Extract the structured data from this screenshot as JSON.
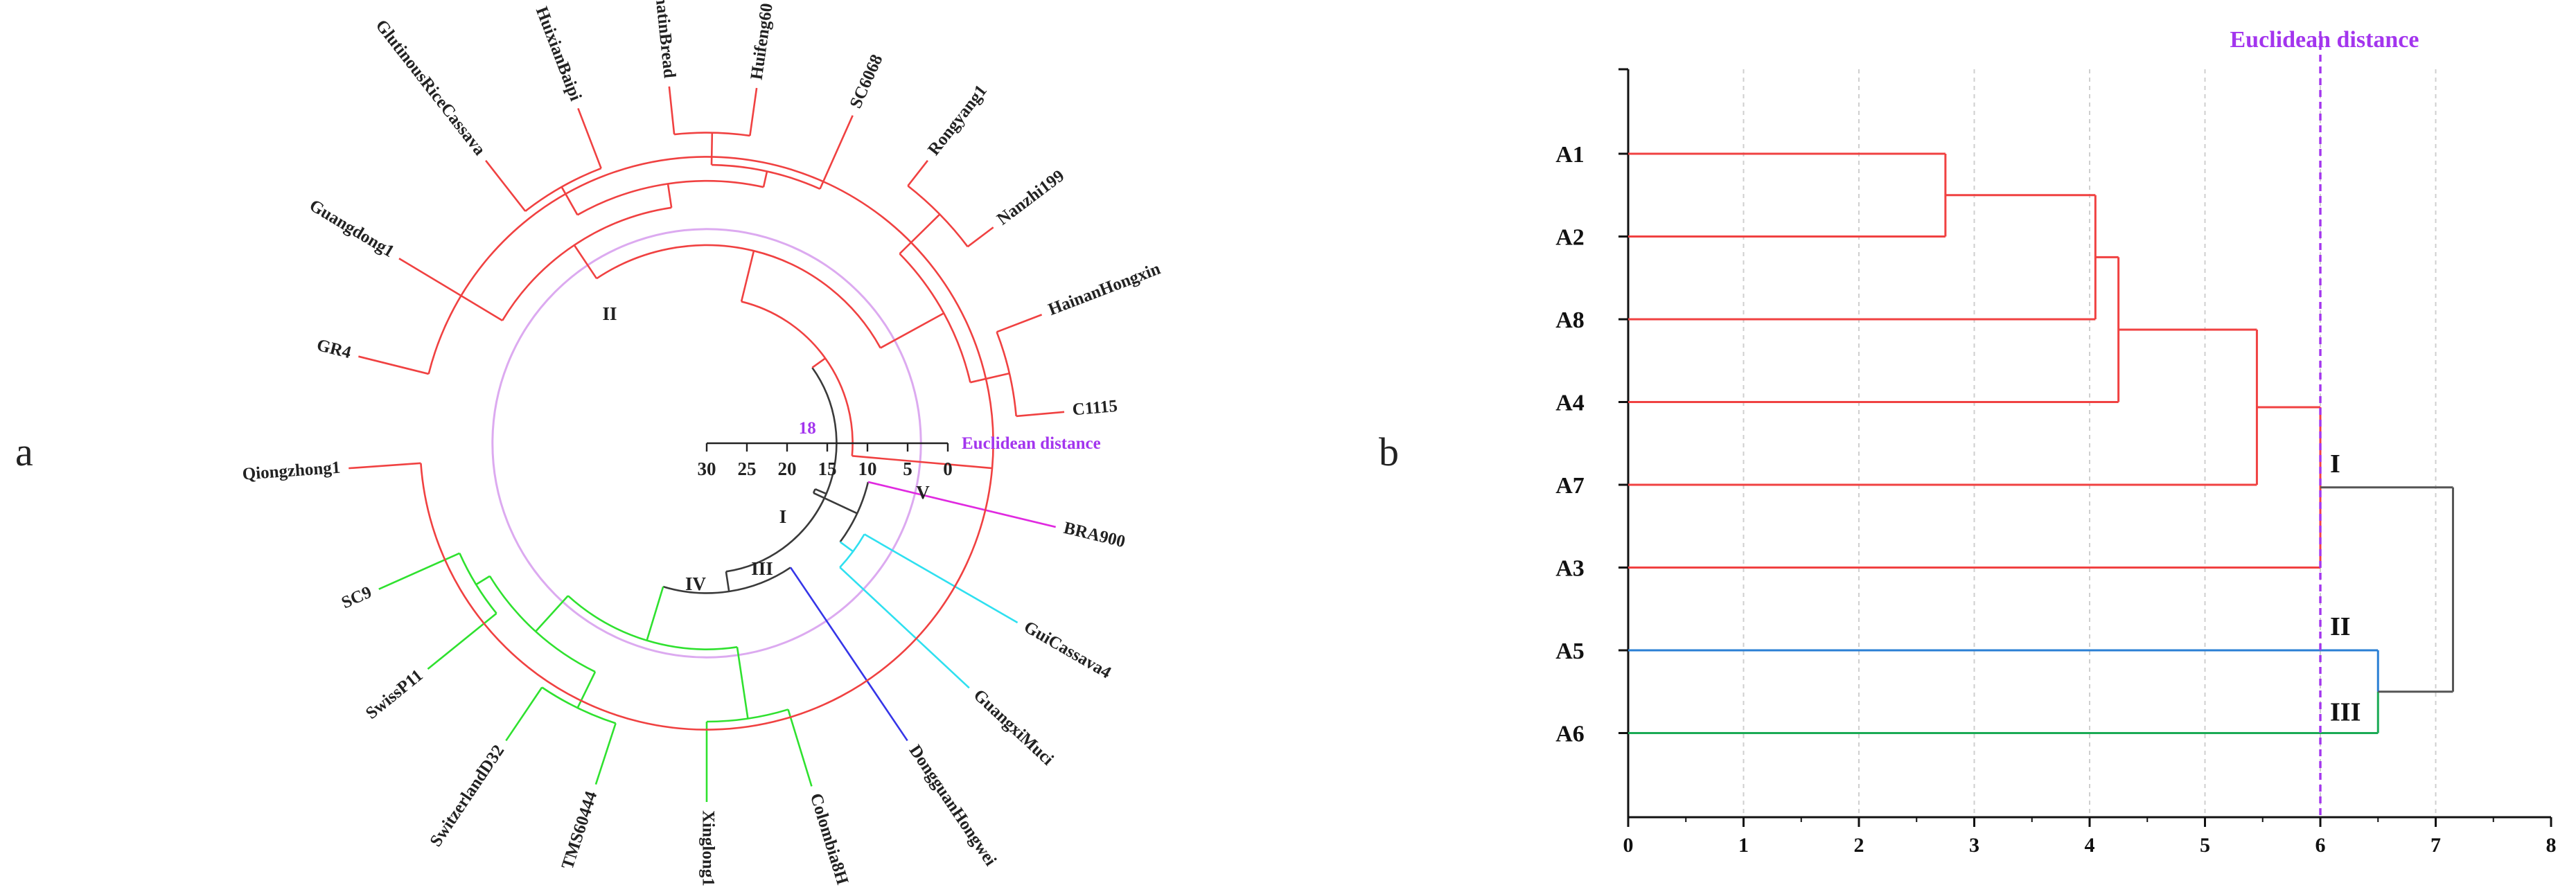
{
  "panels": {
    "a": "a",
    "b": "b"
  },
  "colors": {
    "red": "#f04141",
    "green": "#2fe12f",
    "cyan": "#2fe0f0",
    "blue": "#3535e8",
    "magenta": "#e02ae0",
    "gray": "#3a3a3a",
    "cut": "#a335ee",
    "cutCircle": "#dcaaf0",
    "bBlue": "#2a7fd4",
    "bGreen": "#1aaa55"
  },
  "chart_data": [
    {
      "type": "circular-dendrogram",
      "panel": "a",
      "axis": {
        "label": "Euclidean distance",
        "ticks": [
          30,
          25,
          20,
          15,
          10,
          5,
          0
        ],
        "reversed": true
      },
      "cut": {
        "value": 18,
        "label": "18"
      },
      "clades": [
        {
          "id": "I",
          "label": "I",
          "color": "cyan",
          "leaves": [
            "GuiCassava4",
            "GuangxiMuci"
          ]
        },
        {
          "id": "II",
          "label": "II",
          "color": "red",
          "leaves": [
            "HainanHongxin",
            "C1115",
            "Nanzhi199",
            "Rongyang1",
            "SC6068",
            "Huifeng60",
            "ShatinBread",
            "HuixianBaipi",
            "GlutinousRiceCassava",
            "Guangdong1",
            "GR4",
            "Qiongzhong1"
          ]
        },
        {
          "id": "III",
          "label": "III",
          "color": "blue",
          "leaves": [
            "DongguanHongwei"
          ]
        },
        {
          "id": "IV",
          "label": "IV",
          "color": "green",
          "leaves": [
            "Colombia8H",
            "Xinglong1",
            "TMS60444",
            "SwitzerlandD32",
            "SwissP11",
            "SC9"
          ]
        },
        {
          "id": "V",
          "label": "V",
          "color": "magenta",
          "leaves": [
            "BRA900"
          ]
        }
      ],
      "leaves": [
        "BRA900",
        "C1115",
        "HainanHongxin",
        "Nanzhi199",
        "Rongyang1",
        "SC6068",
        "Huifeng60",
        "ShatinBread",
        "HuixianBaipi",
        "GlutinousRiceCassava",
        "Guangdong1",
        "GR4",
        "Qiongzhong1",
        "SC9",
        "SwissP11",
        "SwitzerlandD32",
        "TMS60444",
        "Xinglong1",
        "Colombia8H",
        "DongguanHongwei",
        "GuangxiMuci",
        "GuiCassava4"
      ]
    },
    {
      "type": "dendrogram",
      "panel": "b",
      "title": "Euclidean distance",
      "xlim": [
        0,
        8
      ],
      "xticks": [
        0,
        1,
        2,
        3,
        4,
        5,
        6,
        7,
        8
      ],
      "cut": 6,
      "leaves": [
        "A1",
        "A2",
        "A8",
        "A4",
        "A7",
        "A3",
        "A5",
        "A6"
      ],
      "merges": [
        {
          "a": "A1",
          "b": "A2",
          "height": 2.75
        },
        {
          "a": "A1-A2",
          "b": "A8",
          "height": 4.05
        },
        {
          "a": "A1-A2-A8",
          "b": "A4",
          "height": 4.25
        },
        {
          "a": "A1-A2-A8-A4",
          "b": "A7",
          "height": 5.45
        },
        {
          "a": "A1-A2-A8-A4-A7",
          "b": "A3",
          "height": 6.0
        },
        {
          "a": "A5",
          "b": "A6",
          "height": 6.5
        },
        {
          "a": "I",
          "b": "II-III",
          "height": 7.15
        }
      ],
      "clusters": [
        {
          "label": "I",
          "members": [
            "A1",
            "A2",
            "A8",
            "A4",
            "A7",
            "A3"
          ],
          "color": "red"
        },
        {
          "label": "II",
          "members": [
            "A5"
          ],
          "color": "bBlue"
        },
        {
          "label": "III",
          "members": [
            "A6"
          ],
          "color": "bGreen"
        }
      ]
    }
  ]
}
